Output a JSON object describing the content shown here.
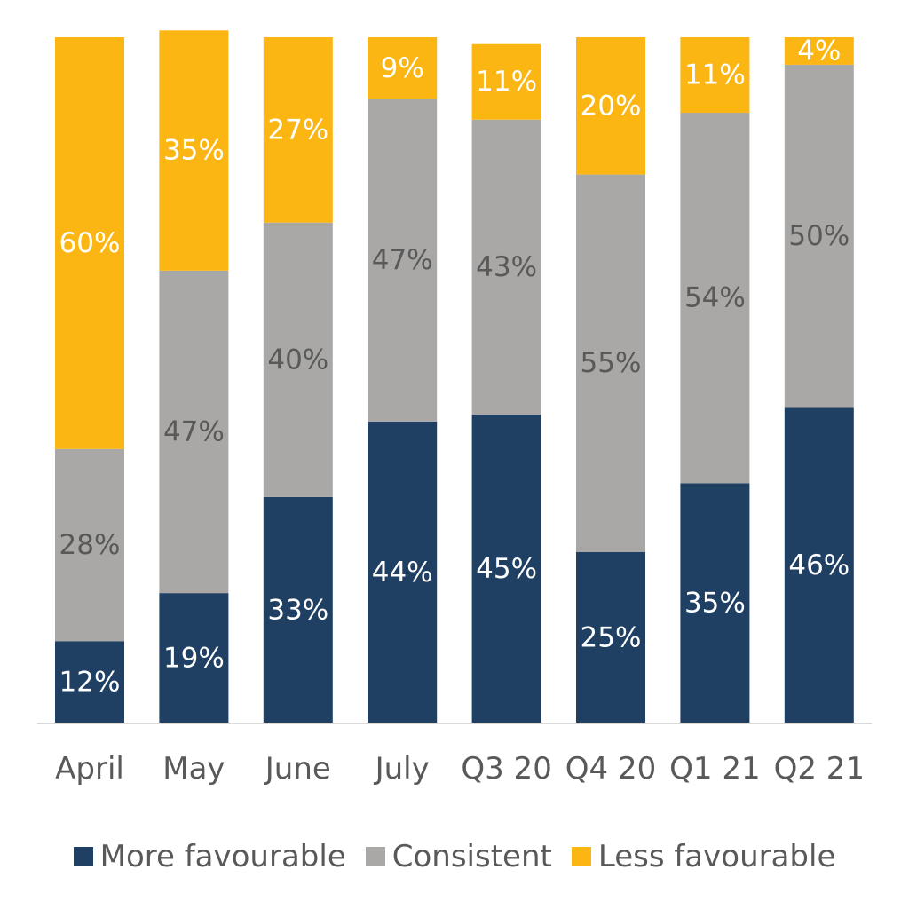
{
  "chart_data": {
    "type": "bar",
    "stacked": true,
    "percent_stacked": true,
    "categories": [
      "April",
      "May",
      "June",
      "July",
      "Q3 20",
      "Q4 20",
      "Q1 21",
      "Q2 21"
    ],
    "series": [
      {
        "name": "More favourable",
        "color": "#1f3f63",
        "label_color": "#ffffff",
        "values": [
          12,
          19,
          33,
          44,
          45,
          25,
          35,
          46
        ]
      },
      {
        "name": "Consistent",
        "color": "#a9a8a7",
        "label_color": "#595959",
        "values": [
          28,
          47,
          40,
          47,
          43,
          55,
          54,
          50
        ]
      },
      {
        "name": "Less favourable",
        "color": "#fbb613",
        "label_color": "#ffffff",
        "values": [
          60,
          35,
          27,
          9,
          11,
          20,
          11,
          4
        ]
      }
    ],
    "ylim": [
      0,
      100
    ],
    "value_suffix": "%",
    "legend_position": "bottom",
    "grid": false
  }
}
